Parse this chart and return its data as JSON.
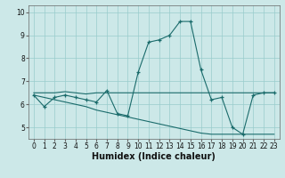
{
  "xlabel": "Humidex (Indice chaleur)",
  "background_color": "#cce8e8",
  "grid_color": "#99cccc",
  "line_color": "#1a6b6b",
  "x": [
    0,
    1,
    2,
    3,
    4,
    5,
    6,
    7,
    8,
    9,
    10,
    11,
    12,
    13,
    14,
    15,
    16,
    17,
    18,
    19,
    20,
    21,
    22,
    23
  ],
  "y_main": [
    6.4,
    5.9,
    6.3,
    6.4,
    6.3,
    6.2,
    6.1,
    6.6,
    5.6,
    5.5,
    7.4,
    8.7,
    8.8,
    9.0,
    9.6,
    9.6,
    7.5,
    6.2,
    6.3,
    5.0,
    4.7,
    6.4,
    6.5,
    6.5
  ],
  "y_trend1": [
    6.5,
    6.5,
    6.5,
    6.55,
    6.5,
    6.45,
    6.5,
    6.5,
    6.5,
    6.5,
    6.5,
    6.5,
    6.5,
    6.5,
    6.5,
    6.5,
    6.5,
    6.5,
    6.5,
    6.5,
    6.5,
    6.5,
    6.5,
    6.5
  ],
  "y_trend2": [
    6.4,
    6.3,
    6.2,
    6.1,
    6.0,
    5.9,
    5.75,
    5.65,
    5.55,
    5.45,
    5.35,
    5.25,
    5.15,
    5.05,
    4.95,
    4.85,
    4.75,
    4.7,
    4.7,
    4.7,
    4.7,
    4.7,
    4.7,
    4.7
  ],
  "ylim": [
    4.5,
    10.3
  ],
  "xlim": [
    -0.5,
    23.5
  ],
  "yticks": [
    5,
    6,
    7,
    8,
    9,
    10
  ],
  "xticks": [
    0,
    1,
    2,
    3,
    4,
    5,
    6,
    7,
    8,
    9,
    10,
    11,
    12,
    13,
    14,
    15,
    16,
    17,
    18,
    19,
    20,
    21,
    22,
    23
  ],
  "tick_fontsize": 5.5,
  "xlabel_fontsize": 7
}
